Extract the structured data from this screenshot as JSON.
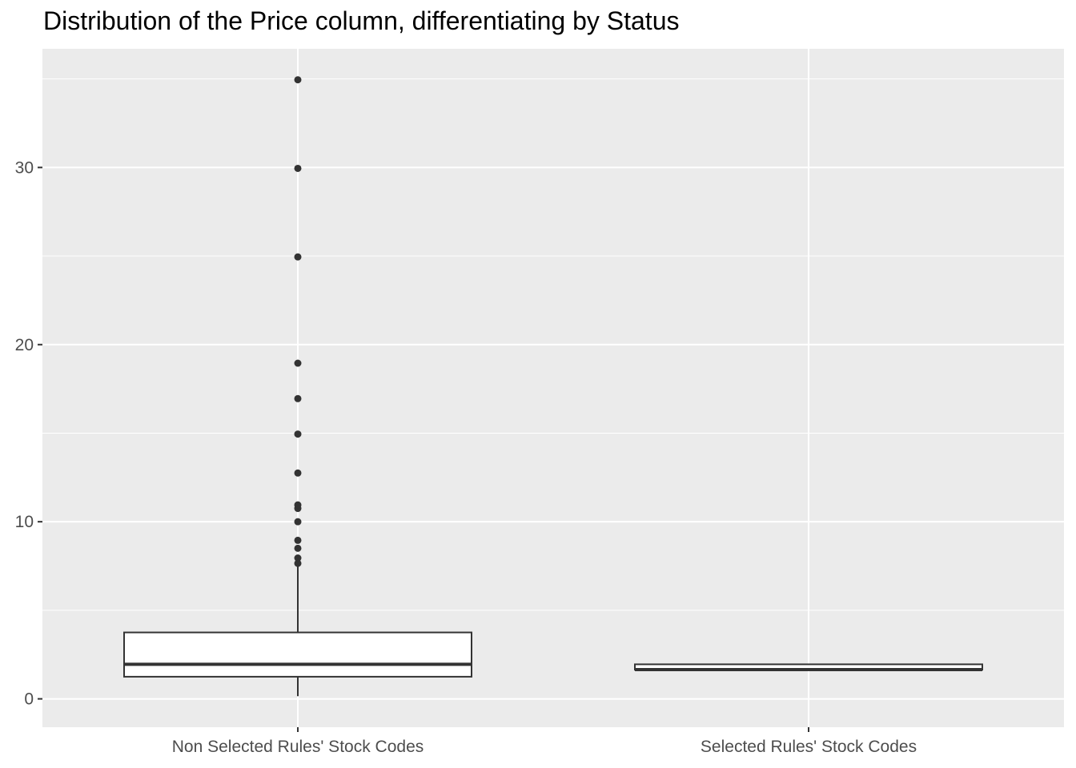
{
  "chart_data": {
    "type": "box",
    "title": "Distribution of the Price column, differentiating by Status",
    "xlabel": "",
    "ylabel": "",
    "ylim": [
      -1.6,
      36.7
    ],
    "y_ticks": [
      0,
      10,
      20,
      30
    ],
    "grid": true,
    "legend": "none",
    "categories": [
      "Non Selected Rules' Stock Codes",
      "Selected Rules' Stock Codes"
    ],
    "boxes": [
      {
        "category": "Non Selected Rules' Stock Codes",
        "whisker_low": 0.15,
        "q1": 1.25,
        "median": 1.95,
        "q3": 3.75,
        "whisker_high": 7.6,
        "outliers": [
          7.65,
          7.95,
          8.5,
          8.95,
          10.0,
          10.75,
          10.95,
          12.75,
          14.95,
          16.95,
          18.95,
          24.95,
          29.95,
          34.95
        ]
      },
      {
        "category": "Selected Rules' Stock Codes",
        "whisker_low": 1.65,
        "q1": 1.65,
        "median": 1.65,
        "q3": 1.95,
        "whisker_high": 1.95,
        "outliers": []
      }
    ],
    "colors": {
      "panel_background": "#ebebeb",
      "grid_major": "#ffffff",
      "box_fill": "#ffffff",
      "box_stroke": "#333333",
      "outlier": "#333333",
      "tick_text": "#4d4d4d",
      "tick_mark": "#333333"
    }
  }
}
